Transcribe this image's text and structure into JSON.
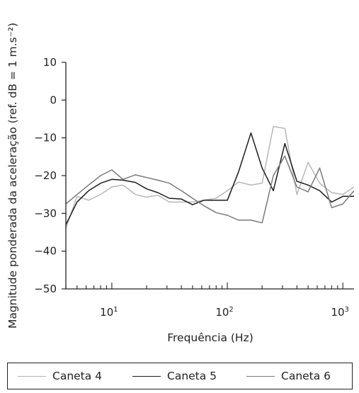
{
  "chart_data": {
    "type": "line",
    "xlabel": "Frequência (Hz)",
    "ylabel": "Magnitude ponderada da aceleração (ref. dB = 1 m.s⁻²)",
    "x_scale": "log",
    "xlim": [
      4,
      1250
    ],
    "ylim": [
      -50,
      10
    ],
    "y_ticks": [
      10,
      0,
      -10,
      -20,
      -30,
      -40,
      -50
    ],
    "y_tick_labels": [
      "10",
      "0",
      "−10",
      "−20",
      "−30",
      "−40",
      "−50"
    ],
    "x_ticks": [
      {
        "base": "10",
        "exp": "1",
        "value": 10
      },
      {
        "base": "10",
        "exp": "2",
        "value": 100
      },
      {
        "base": "10",
        "exp": "3",
        "value": 1000
      }
    ],
    "grid": false,
    "legend_position": "bottom",
    "x": [
      4,
      5,
      6.3,
      8,
      10,
      12.5,
      16,
      20,
      25,
      31.5,
      40,
      50,
      63,
      80,
      100,
      125,
      160,
      200,
      250,
      315,
      400,
      500,
      630,
      800,
      1000,
      1250
    ],
    "series": [
      {
        "name": "Caneta 4",
        "color": "#b3b3b3",
        "width": 1.4,
        "values": [
          -34,
          -25.5,
          -26.5,
          -25,
          -23,
          -22.5,
          -25,
          -25.7,
          -25.2,
          -27,
          -27,
          -27,
          -26.5,
          -26,
          -24,
          -21.7,
          -22.5,
          -22,
          -7,
          -7.5,
          -25,
          -16.5,
          -22,
          -24.5,
          -25,
          -23
        ]
      },
      {
        "name": "Caneta 5",
        "color": "#1c1c1c",
        "width": 1.5,
        "values": [
          -33,
          -27,
          -24,
          -22,
          -21,
          -21.2,
          -21.8,
          -23.5,
          -24.5,
          -26,
          -26.2,
          -27.7,
          -26.5,
          -26.5,
          -26.5,
          -19,
          -8.7,
          -18,
          -24,
          -11.5,
          -21.5,
          -22.5,
          -24,
          -27,
          -25.5,
          -25.5
        ]
      },
      {
        "name": "Caneta 6",
        "color": "#7a7a7a",
        "width": 1.5,
        "values": [
          -27.5,
          -25,
          -22.5,
          -20,
          -18.5,
          -21,
          -19.8,
          -20.5,
          -21.2,
          -22,
          -24,
          -26,
          -28,
          -29.8,
          -30.5,
          -31.8,
          -31.8,
          -32.5,
          -20,
          -14.8,
          -23,
          -24.3,
          -18,
          -28.5,
          -27.5,
          -24
        ]
      }
    ]
  }
}
